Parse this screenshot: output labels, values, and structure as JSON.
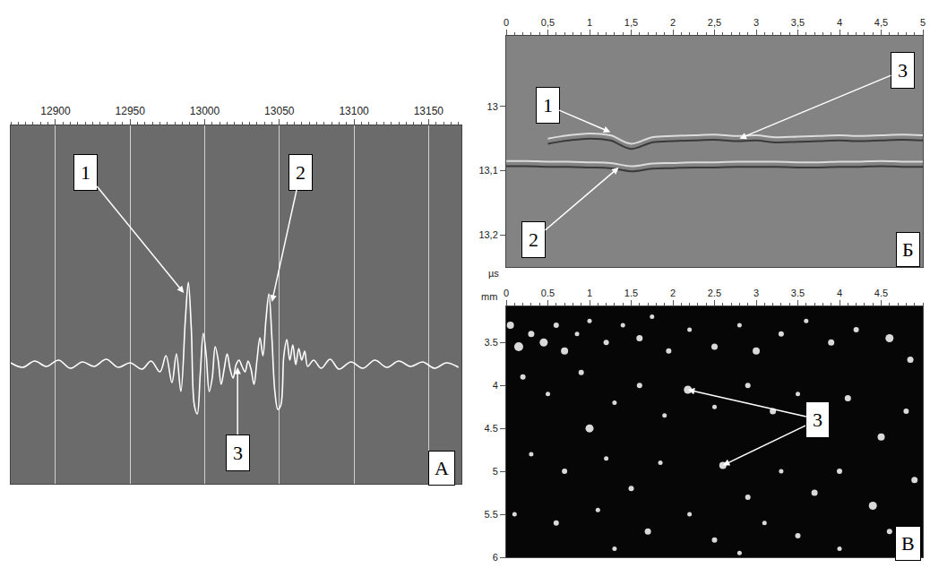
{
  "chart_data": [
    {
      "type": "line",
      "panel": "А",
      "color": "#ffffff",
      "grid": true,
      "tick_labels": "x",
      "x": [
        12870,
        12878,
        12886,
        12894,
        12902,
        12910,
        12918,
        12926,
        12934,
        12942,
        12950,
        12958,
        12964,
        12970,
        12974,
        12978,
        12981,
        12984,
        12987,
        12989,
        12991,
        12993,
        12995,
        12997,
        12999,
        13001,
        13003,
        13005,
        13007,
        13009,
        13011,
        13013,
        13015,
        13017,
        13019,
        13021,
        13023,
        13025,
        13027,
        13029,
        13031,
        13033,
        13035,
        13037,
        13039,
        13041,
        13043,
        13045,
        13047,
        13049,
        13051,
        13053,
        13055,
        13057,
        13059,
        13061,
        13063,
        13065,
        13067,
        13069,
        13073,
        13078,
        13084,
        13090,
        13098,
        13106,
        13114,
        13122,
        13130,
        13138,
        13146,
        13154,
        13162,
        13170
      ],
      "values": [
        0.02,
        -0.03,
        0.04,
        -0.02,
        0.05,
        -0.04,
        0.03,
        -0.02,
        0.06,
        -0.03,
        0.02,
        -0.05,
        0.04,
        -0.08,
        0.1,
        -0.2,
        0.12,
        -0.3,
        0.5,
        0.92,
        0.4,
        -0.45,
        -0.55,
        -0.1,
        0.35,
        0.1,
        -0.3,
        -0.15,
        0.2,
        0.05,
        -0.22,
        -0.05,
        0.12,
        -0.05,
        -0.15,
        0,
        0.05,
        -0.02,
        -0.08,
        0.04,
        -0.05,
        -0.22,
        0.05,
        0.3,
        0.1,
        0.5,
        0.79,
        0.3,
        -0.3,
        -0.5,
        -0.45,
        0.1,
        0.28,
        0.05,
        0.22,
        0,
        0.18,
        0.05,
        0.15,
        -0.02,
        0.05,
        -0.04,
        0.06,
        -0.05,
        0.03,
        -0.04,
        0.05,
        -0.03,
        0.04,
        -0.02,
        0.03,
        -0.04,
        0.02,
        -0.03
      ],
      "xlim": [
        12870,
        13172
      ],
      "xticks": [
        12900,
        12950,
        13000,
        13050,
        13100,
        13150
      ],
      "ylim": [
        -1.33,
        2.67
      ],
      "annotations": [
        {
          "text": "1",
          "points": [
            [
              12986,
              0.8
            ]
          ]
        },
        {
          "text": "2",
          "points": [
            [
              13045,
              0.7
            ]
          ]
        },
        {
          "text": "3",
          "points": [
            [
              13022,
              -0.03
            ]
          ]
        }
      ]
    },
    {
      "type": "line",
      "panel": "Б",
      "grid": false,
      "ylabel": "µs",
      "x": [
        0,
        0.25,
        0.5,
        0.75,
        1,
        1.25,
        1.5,
        1.75,
        2,
        2.25,
        2.5,
        2.75,
        3,
        3.25,
        3.5,
        3.75,
        4,
        4.25,
        4.5,
        4.75,
        5
      ],
      "series": [
        {
          "color": "#dcdcdc",
          "values": [
            null,
            null,
            13.05,
            13.045,
            13.042,
            13.045,
            13.058,
            13.048,
            13.046,
            13.045,
            13.044,
            13.046,
            13.045,
            13.048,
            13.047,
            13.046,
            13.045,
            13.046,
            13.045,
            13.044,
            13.045
          ]
        },
        {
          "color": "#3a3a3a",
          "values": [
            null,
            null,
            13.058,
            13.053,
            13.05,
            13.053,
            13.066,
            13.056,
            13.054,
            13.053,
            13.052,
            13.054,
            13.053,
            13.056,
            13.055,
            13.054,
            13.053,
            13.054,
            13.053,
            13.052,
            13.053
          ]
        },
        {
          "color": "#dcdcdc",
          "values": [
            13.085,
            13.085,
            13.086,
            13.086,
            13.087,
            13.088,
            13.093,
            13.089,
            13.088,
            13.087,
            13.087,
            13.086,
            13.086,
            13.086,
            13.087,
            13.087,
            13.086,
            13.086,
            13.085,
            13.086,
            13.086
          ]
        },
        {
          "color": "#3a3a3a",
          "values": [
            13.093,
            13.093,
            13.094,
            13.094,
            13.095,
            13.096,
            13.101,
            13.097,
            13.096,
            13.095,
            13.095,
            13.094,
            13.094,
            13.094,
            13.095,
            13.095,
            13.094,
            13.094,
            13.093,
            13.094,
            13.094
          ]
        }
      ],
      "xlim": [
        0,
        5
      ],
      "xticks": [
        0,
        {
          "value": 0.5,
          "label": "0,5"
        },
        1,
        {
          "value": 1.5,
          "label": "1,5"
        },
        2,
        {
          "value": 2.5,
          "label": "2,5"
        },
        3,
        {
          "value": 3.5,
          "label": "3,5"
        },
        4,
        {
          "value": 4.5,
          "label": "4,5"
        },
        5
      ],
      "ylim": [
        13.25,
        12.89
      ],
      "yticks": [
        13,
        {
          "value": 13.1,
          "label": "13,1"
        },
        {
          "value": 13.2,
          "label": "13,2"
        }
      ],
      "annotations": [
        {
          "text": "1",
          "points": [
            [
              1.25,
              13.04
            ]
          ]
        },
        {
          "text": "2",
          "points": [
            [
              1.35,
              13.095
            ]
          ]
        },
        {
          "text": "3",
          "points": [
            [
              2.8,
              13.05
            ]
          ]
        }
      ]
    },
    {
      "type": "scatter",
      "panel": "В",
      "color": "#ffffff",
      "grid": false,
      "xlabel": "mm",
      "x": [
        0.05,
        0.15,
        0.3,
        0.45,
        0.6,
        0.7,
        0.85,
        1.0,
        1.2,
        1.4,
        1.6,
        1.75,
        1.95,
        2.2,
        2.5,
        2.8,
        3.0,
        3.3,
        3.6,
        3.9,
        4.2,
        4.6,
        4.85,
        0.2,
        0.5,
        0.9,
        1.0,
        1.3,
        1.6,
        1.9,
        2.18,
        2.5,
        2.9,
        3.2,
        3.5,
        3.8,
        4.1,
        4.5,
        4.8,
        0.3,
        0.7,
        1.2,
        1.5,
        1.85,
        2.6,
        2.9,
        3.3,
        3.7,
        4.0,
        4.4,
        4.9,
        0.1,
        0.6,
        1.1,
        1.7,
        2.2,
        2.5,
        3.1,
        3.5,
        4.0,
        4.6,
        1.3,
        2.8
      ],
      "values": [
        3.3,
        3.55,
        3.4,
        3.5,
        3.3,
        3.6,
        3.4,
        3.25,
        3.5,
        3.3,
        3.45,
        3.2,
        3.6,
        3.35,
        3.55,
        3.3,
        3.6,
        3.4,
        3.25,
        3.5,
        3.35,
        3.45,
        3.7,
        3.9,
        4.1,
        3.85,
        4.5,
        4.2,
        4.0,
        4.35,
        4.05,
        4.25,
        4.0,
        4.3,
        4.1,
        4.4,
        4.15,
        4.6,
        4.3,
        4.8,
        5.0,
        4.85,
        5.2,
        4.9,
        4.93,
        5.3,
        5.0,
        5.25,
        5.0,
        5.4,
        5.1,
        5.5,
        5.6,
        5.45,
        5.7,
        5.5,
        5.8,
        5.6,
        5.75,
        5.9,
        5.7,
        5.9,
        5.95
      ],
      "size": [
        8,
        10,
        7,
        9,
        6,
        8,
        5,
        5,
        6,
        5,
        7,
        5,
        6,
        5,
        7,
        5,
        8,
        6,
        5,
        7,
        6,
        9,
        7,
        6,
        5,
        6,
        9,
        5,
        6,
        5,
        9,
        5,
        6,
        7,
        5,
        6,
        7,
        8,
        6,
        5,
        6,
        5,
        6,
        5,
        8,
        6,
        5,
        7,
        6,
        9,
        7,
        5,
        6,
        5,
        7,
        5,
        6,
        5,
        6,
        5,
        6,
        5,
        5
      ],
      "xlim": [
        0,
        5
      ],
      "xticks": [
        0,
        0.5,
        1,
        1.5,
        2,
        2.5,
        3,
        3.5,
        4,
        4.5
      ],
      "ylim": [
        6,
        3.08
      ],
      "yticks": [
        3.5,
        4,
        4.5,
        5,
        5.5,
        6
      ],
      "annotations": [
        {
          "text": "3",
          "points": [
            [
              2.18,
              4.05
            ],
            [
              2.6,
              4.93
            ]
          ]
        }
      ]
    }
  ]
}
